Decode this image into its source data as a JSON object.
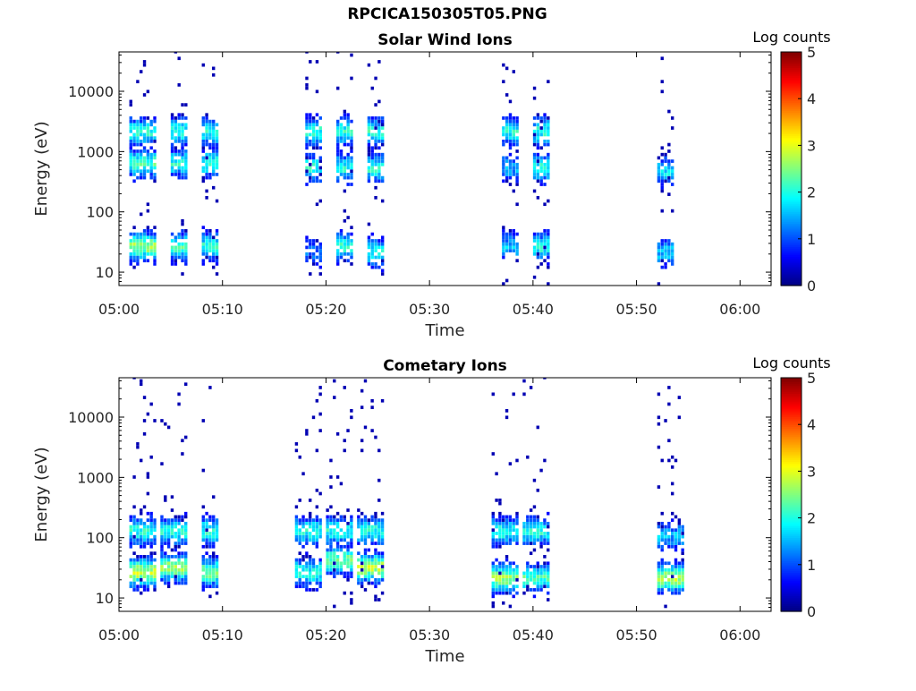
{
  "figure": {
    "title": "RPCICA150305T05.PNG"
  },
  "chart_data": [
    {
      "type": "heatmap",
      "title": "Solar Wind Ions",
      "xlabel": "Time",
      "ylabel": "Energy (eV)",
      "x_ticks": [
        "05:00",
        "05:10",
        "05:20",
        "05:30",
        "05:40",
        "05:50",
        "06:00"
      ],
      "y_ticks": [
        "10",
        "100",
        "1000",
        "10000"
      ],
      "y_scale": "log",
      "ylim": [
        6,
        45000
      ],
      "xlim": [
        "05:00",
        "06:03"
      ],
      "colorbar": {
        "label": "Log counts",
        "range": [
          0,
          5
        ],
        "ticks": [
          "0",
          "1",
          "2",
          "3",
          "4",
          "5"
        ]
      },
      "bursts": [
        {
          "start": "05:01",
          "end": "05:03",
          "peaks": [
            {
              "energy": 2000,
              "level": 2.0
            },
            {
              "energy": 600,
              "level": 2.2
            },
            {
              "energy": 25,
              "level": 2.6
            }
          ]
        },
        {
          "start": "05:05",
          "end": "05:06",
          "peaks": [
            {
              "energy": 2000,
              "level": 2.0
            },
            {
              "energy": 600,
              "level": 2.0
            },
            {
              "energy": 25,
              "level": 2.2
            }
          ]
        },
        {
          "start": "05:08",
          "end": "05:09",
          "peaks": [
            {
              "energy": 2000,
              "level": 2.0
            },
            {
              "energy": 600,
              "level": 2.0
            },
            {
              "energy": 25,
              "level": 2.0
            }
          ]
        },
        {
          "start": "05:18",
          "end": "05:19",
          "peaks": [
            {
              "energy": 2000,
              "level": 2.0
            },
            {
              "energy": 500,
              "level": 2.0
            },
            {
              "energy": 20,
              "level": 1.2
            }
          ]
        },
        {
          "start": "05:21",
          "end": "05:22",
          "peaks": [
            {
              "energy": 2000,
              "level": 2.0
            },
            {
              "energy": 500,
              "level": 2.0
            },
            {
              "energy": 25,
              "level": 2.0
            }
          ]
        },
        {
          "start": "05:24",
          "end": "05:25",
          "peaks": [
            {
              "energy": 2000,
              "level": 2.0
            },
            {
              "energy": 500,
              "level": 2.0
            },
            {
              "energy": 20,
              "level": 2.0
            }
          ]
        },
        {
          "start": "05:37",
          "end": "05:38",
          "peaks": [
            {
              "energy": 2000,
              "level": 2.0
            },
            {
              "energy": 500,
              "level": 1.5
            },
            {
              "energy": 25,
              "level": 1.6
            }
          ]
        },
        {
          "start": "05:40",
          "end": "05:41",
          "peaks": [
            {
              "energy": 2000,
              "level": 2.0
            },
            {
              "energy": 500,
              "level": 2.0
            },
            {
              "energy": 25,
              "level": 2.0
            }
          ]
        },
        {
          "start": "05:52",
          "end": "05:53",
          "peaks": [
            {
              "energy": 450,
              "level": 1.8
            },
            {
              "energy": 20,
              "level": 1.6
            }
          ]
        }
      ]
    },
    {
      "type": "heatmap",
      "title": "Cometary Ions",
      "xlabel": "Time",
      "ylabel": "Energy (eV)",
      "x_ticks": [
        "05:00",
        "05:10",
        "05:20",
        "05:30",
        "05:40",
        "05:50",
        "06:00"
      ],
      "y_ticks": [
        "10",
        "100",
        "1000",
        "10000"
      ],
      "y_scale": "log",
      "ylim": [
        6,
        45000
      ],
      "xlim": [
        "05:00",
        "06:03"
      ],
      "colorbar": {
        "label": "Log counts",
        "range": [
          0,
          5
        ],
        "ticks": [
          "0",
          "1",
          "2",
          "3",
          "4",
          "5"
        ]
      },
      "bursts": [
        {
          "start": "05:01",
          "end": "05:03",
          "peaks": [
            {
              "energy": 120,
              "level": 2.0
            },
            {
              "energy": 25,
              "level": 2.8
            }
          ]
        },
        {
          "start": "05:04",
          "end": "05:06",
          "peaks": [
            {
              "energy": 120,
              "level": 2.0
            },
            {
              "energy": 30,
              "level": 2.6
            }
          ]
        },
        {
          "start": "05:08",
          "end": "05:09",
          "peaks": [
            {
              "energy": 120,
              "level": 2.0
            },
            {
              "energy": 25,
              "level": 2.4
            }
          ]
        },
        {
          "start": "05:17",
          "end": "05:19",
          "peaks": [
            {
              "energy": 120,
              "level": 2.0
            },
            {
              "energy": 25,
              "level": 2.0
            }
          ]
        },
        {
          "start": "05:20",
          "end": "05:22",
          "peaks": [
            {
              "energy": 120,
              "level": 2.0
            },
            {
              "energy": 40,
              "level": 2.4
            }
          ]
        },
        {
          "start": "05:23",
          "end": "05:25",
          "peaks": [
            {
              "energy": 120,
              "level": 2.0
            },
            {
              "energy": 30,
              "level": 2.8
            }
          ]
        },
        {
          "start": "05:36",
          "end": "05:38",
          "peaks": [
            {
              "energy": 120,
              "level": 2.0
            },
            {
              "energy": 20,
              "level": 2.6
            }
          ]
        },
        {
          "start": "05:39",
          "end": "05:41",
          "peaks": [
            {
              "energy": 120,
              "level": 2.0
            },
            {
              "energy": 20,
              "level": 2.2
            }
          ]
        },
        {
          "start": "05:52",
          "end": "05:54",
          "peaks": [
            {
              "energy": 100,
              "level": 1.5
            },
            {
              "energy": 20,
              "level": 2.8
            }
          ]
        }
      ]
    }
  ]
}
